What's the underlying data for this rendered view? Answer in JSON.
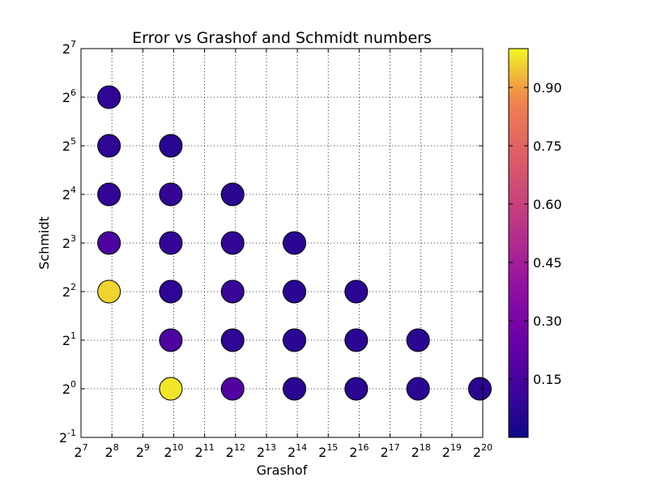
{
  "chart_data": {
    "type": "scatter",
    "title": "Error vs Grashof and Schmidt numbers",
    "xlabel": "Grashof",
    "ylabel": "Schmidt",
    "x_scale": "log2",
    "y_scale": "log2",
    "xlim": [
      128,
      1048576
    ],
    "ylim": [
      0.5,
      128
    ],
    "x_tick_exponents": [
      7,
      8,
      9,
      10,
      11,
      12,
      13,
      14,
      15,
      16,
      17,
      18,
      19,
      20
    ],
    "y_tick_exponents": [
      -1,
      0,
      1,
      2,
      3,
      4,
      5,
      6,
      7
    ],
    "tick_base": "2",
    "grid": true,
    "colormap": "plasma",
    "color_range": [
      0.0,
      1.0
    ],
    "colorbar_ticks": [
      "0.15",
      "0.30",
      "0.45",
      "0.60",
      "0.75",
      "0.90"
    ],
    "colorbar_tick_values": [
      0.15,
      0.3,
      0.45,
      0.6,
      0.75,
      0.9
    ],
    "points": [
      {
        "x": 240,
        "y": 64,
        "error": 0.08
      },
      {
        "x": 240,
        "y": 32,
        "error": 0.08
      },
      {
        "x": 240,
        "y": 16,
        "error": 0.09
      },
      {
        "x": 240,
        "y": 8,
        "error": 0.16
      },
      {
        "x": 240,
        "y": 4,
        "error": 0.96
      },
      {
        "x": 960,
        "y": 32,
        "error": 0.06
      },
      {
        "x": 960,
        "y": 16,
        "error": 0.09
      },
      {
        "x": 960,
        "y": 8,
        "error": 0.09
      },
      {
        "x": 960,
        "y": 4,
        "error": 0.08
      },
      {
        "x": 960,
        "y": 2,
        "error": 0.16
      },
      {
        "x": 960,
        "y": 1,
        "error": 0.98
      },
      {
        "x": 3840,
        "y": 16,
        "error": 0.07
      },
      {
        "x": 3840,
        "y": 8,
        "error": 0.09
      },
      {
        "x": 3840,
        "y": 4,
        "error": 0.1
      },
      {
        "x": 3840,
        "y": 2,
        "error": 0.08
      },
      {
        "x": 3840,
        "y": 1,
        "error": 0.17
      },
      {
        "x": 15360,
        "y": 8,
        "error": 0.07
      },
      {
        "x": 15360,
        "y": 4,
        "error": 0.07
      },
      {
        "x": 15360,
        "y": 2,
        "error": 0.07
      },
      {
        "x": 15360,
        "y": 1,
        "error": 0.07
      },
      {
        "x": 61440,
        "y": 4,
        "error": 0.07
      },
      {
        "x": 61440,
        "y": 2,
        "error": 0.07
      },
      {
        "x": 61440,
        "y": 1,
        "error": 0.07
      },
      {
        "x": 245760,
        "y": 2,
        "error": 0.07
      },
      {
        "x": 245760,
        "y": 1,
        "error": 0.07
      },
      {
        "x": 983040,
        "y": 1,
        "error": 0.07
      }
    ]
  }
}
